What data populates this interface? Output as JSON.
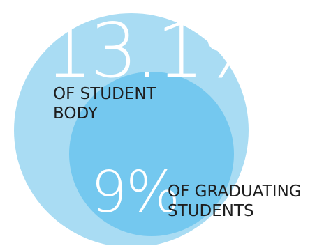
{
  "chart_data": {
    "type": "venn",
    "series": [
      {
        "value": "13.1%",
        "label_lines": [
          "OF STUDENT",
          "BODY"
        ],
        "value_number": 13.1,
        "color": "#a9dcf3"
      },
      {
        "value": "9%",
        "label_lines": [
          "OF GRADUATING",
          "STUDENTS"
        ],
        "value_number": 9,
        "color": "#74c8ef"
      }
    ]
  }
}
